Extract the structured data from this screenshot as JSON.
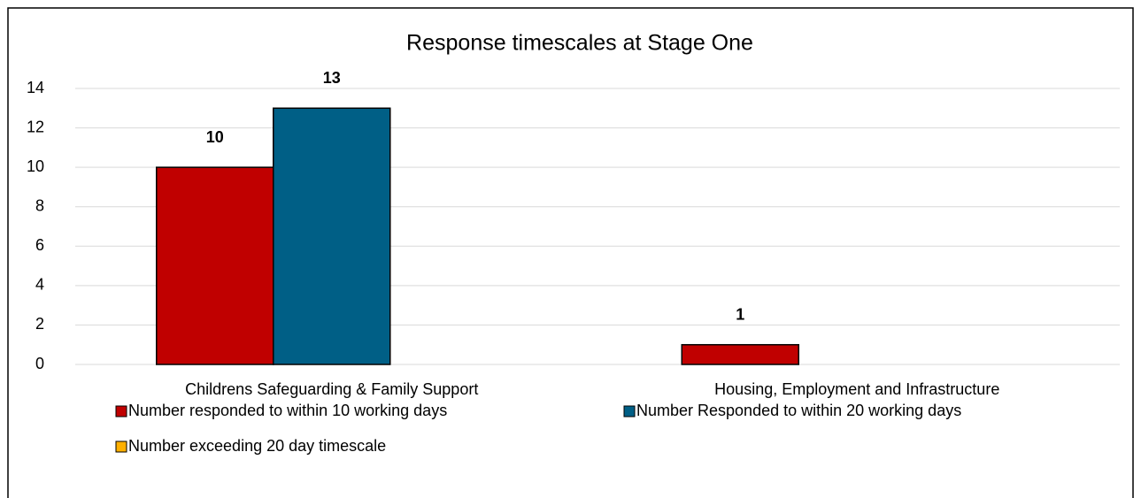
{
  "chart_data": {
    "type": "bar",
    "title": "Response timescales at Stage One",
    "categories": [
      "Childrens Safeguarding & Family Support",
      "Housing, Employment and Infrastructure"
    ],
    "series": [
      {
        "name": "Number responded to within 10 working days",
        "color": "#c00000",
        "values": [
          10,
          1
        ]
      },
      {
        "name": "Number Responded to within 20 working days",
        "color": "#005f86",
        "values": [
          13,
          null
        ]
      },
      {
        "name": "Number exceeding 20 day timescale",
        "color": "#ffb000",
        "values": [
          null,
          null
        ]
      }
    ],
    "ylim": [
      0,
      14
    ],
    "yticks": [
      0,
      2,
      4,
      6,
      8,
      10,
      12,
      14
    ],
    "grid": true,
    "legend": "bottom"
  }
}
